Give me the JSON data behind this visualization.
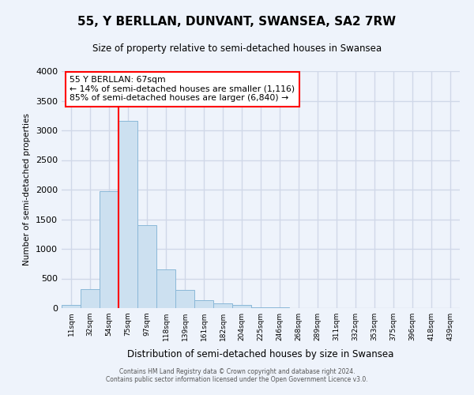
{
  "title": "55, Y BERLLAN, DUNVANT, SWANSEA, SA2 7RW",
  "subtitle": "Size of property relative to semi-detached houses in Swansea",
  "xlabel": "Distribution of semi-detached houses by size in Swansea",
  "ylabel": "Number of semi-detached properties",
  "bin_labels": [
    "11sqm",
    "32sqm",
    "54sqm",
    "75sqm",
    "97sqm",
    "118sqm",
    "139sqm",
    "161sqm",
    "182sqm",
    "204sqm",
    "225sqm",
    "246sqm",
    "268sqm",
    "289sqm",
    "311sqm",
    "332sqm",
    "353sqm",
    "375sqm",
    "396sqm",
    "418sqm",
    "439sqm"
  ],
  "bin_values": [
    50,
    325,
    1980,
    3160,
    1400,
    650,
    310,
    140,
    75,
    55,
    20,
    10,
    5,
    0,
    0,
    0,
    0,
    0,
    0,
    0,
    0
  ],
  "bar_color": "#cce0f0",
  "bar_edge_color": "#8ab8d8",
  "vline_x": 3.0,
  "annotation_text_line1": "55 Y BERLLAN: 67sqm",
  "annotation_text_line2": "← 14% of semi-detached houses are smaller (1,116)",
  "annotation_text_line3": "85% of semi-detached houses are larger (6,840) →",
  "ylim": [
    0,
    4000
  ],
  "yticks": [
    0,
    500,
    1000,
    1500,
    2000,
    2500,
    3000,
    3500,
    4000
  ],
  "bg_color": "#eef3fb",
  "grid_color": "#d0d8e8",
  "footer_line1": "Contains HM Land Registry data © Crown copyright and database right 2024.",
  "footer_line2": "Contains public sector information licensed under the Open Government Licence v3.0."
}
